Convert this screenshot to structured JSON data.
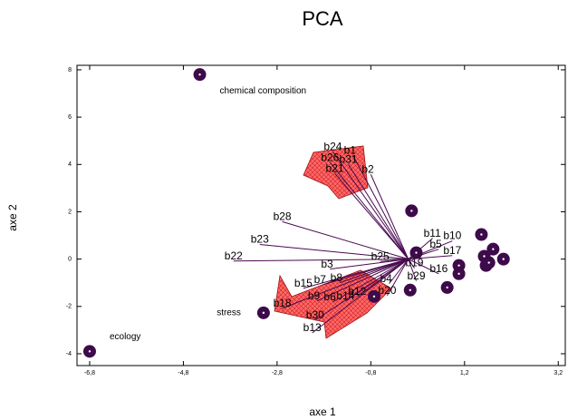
{
  "chart_data": {
    "type": "scatter",
    "title": "PCA",
    "xlabel": "axe 1",
    "ylabel": "axe 2",
    "xlim": [
      -7.07,
      3.35
    ],
    "ylim": [
      -4.5,
      8.19
    ],
    "xticks": [
      {
        "value": -6.8,
        "label": "-6,8"
      },
      {
        "value": -4.8,
        "label": "-4,8"
      },
      {
        "value": -2.8,
        "label": "-2,8"
      },
      {
        "value": -0.8,
        "label": "-0,8"
      },
      {
        "value": 1.2,
        "label": "1,2"
      },
      {
        "value": 3.2,
        "label": "3,2"
      }
    ],
    "yticks": [
      -4,
      -2,
      0,
      2,
      4,
      6,
      8
    ],
    "color": "#3d0a4a",
    "x": [
      -6.8,
      -4.45,
      -3.09,
      0.07,
      0.17,
      0.04,
      -0.73,
      0.83,
      1.08,
      1.08,
      1.56,
      1.62,
      1.66,
      1.81,
      2.03,
      1.72
    ],
    "values": [
      -3.9,
      7.8,
      -2.27,
      2.04,
      0.27,
      -1.31,
      -1.58,
      -1.2,
      -0.27,
      -0.62,
      1.04,
      0.12,
      -0.27,
      0.42,
      0.0,
      -0.15
    ],
    "labels": [
      "ecology",
      "chemical composition",
      "stress",
      null,
      null,
      null,
      null,
      null,
      null,
      null,
      null,
      null,
      null,
      null,
      null,
      null
    ],
    "vector_color": "#4a0a50",
    "vectors": {
      "names": [
        "b24",
        "b26",
        "b21",
        "b1",
        "b31",
        "b2",
        "b28",
        "b23",
        "b22",
        "b3",
        "b25",
        "b19",
        "b29",
        "b11",
        "b10",
        "b5",
        "b17",
        "b16",
        "b15",
        "b7",
        "b8",
        "b14",
        "b4",
        "b9",
        "b6",
        "b12",
        "b20",
        "b18",
        "b30",
        "b13"
      ],
      "x": [
        -1.61,
        -1.67,
        -1.57,
        -1.18,
        -1.28,
        -0.8,
        -2.69,
        -3.17,
        -3.73,
        -1.67,
        -0.6,
        0.13,
        0.17,
        0.52,
        0.94,
        0.65,
        0.94,
        0.65,
        -2.24,
        -1.82,
        -1.47,
        -1.34,
        -0.41,
        -1.95,
        -1.61,
        -1.09,
        -0.45,
        -2.69,
        -1.99,
        -2.05
      ],
      "y": [
        4.54,
        4.08,
        3.62,
        4.38,
        4.0,
        3.58,
        1.58,
        0.62,
        -0.08,
        -0.42,
        -0.1,
        -0.38,
        -0.92,
        0.88,
        0.77,
        0.42,
        0.15,
        -0.62,
        -1.23,
        -1.08,
        -1.0,
        -1.77,
        -1.04,
        -1.77,
        -1.81,
        -1.58,
        -1.54,
        -2.08,
        -2.58,
        -3.12
      ]
    }
  }
}
